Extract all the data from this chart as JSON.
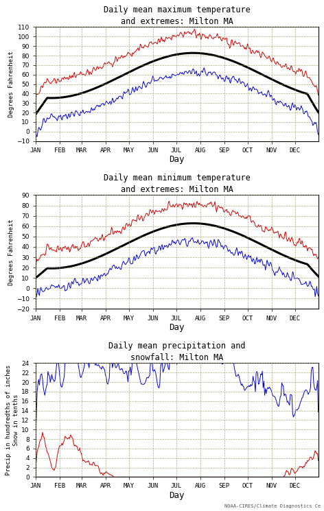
{
  "panel1_title": "Daily mean maximum temperature\nand extremes: Milton MA",
  "panel2_title": "Daily mean minimum temperature\nand extremes: Milton MA",
  "panel3_title": "Daily mean precipitation and\nsnowfall: Milton MA",
  "ylabel1": "Degrees Fahrenheit",
  "ylabel2": "Degrees Fahrenheit",
  "ylabel3": "Precip in hundredths of inches\nSnow in tenths",
  "xlabel": "Day",
  "month_labels": [
    "JAN",
    "FEB",
    "MAR",
    "APR",
    "MAY",
    "JUN",
    "JUL",
    "AUG",
    "SEP",
    "OCT",
    "NOV",
    "DEC"
  ],
  "panel1_ylim": [
    -10,
    110
  ],
  "panel1_yticks": [
    -10,
    0,
    10,
    20,
    30,
    40,
    50,
    60,
    70,
    80,
    90,
    100,
    110
  ],
  "panel2_ylim": [
    -20,
    90
  ],
  "panel2_yticks": [
    -20,
    -10,
    0,
    10,
    20,
    30,
    40,
    50,
    60,
    70,
    80,
    90
  ],
  "panel3_ylim": [
    0,
    24
  ],
  "panel3_yticks": [
    0,
    2,
    4,
    6,
    8,
    10,
    12,
    14,
    16,
    18,
    20,
    22,
    24
  ],
  "red_color": "#cc0000",
  "blue_color": "#0000cc",
  "black_color": "#000000",
  "bg_color": "#ffffff",
  "grid_color": "#999966",
  "watermark": "NOAA-CIRES/Climate Diagnostics Ce"
}
